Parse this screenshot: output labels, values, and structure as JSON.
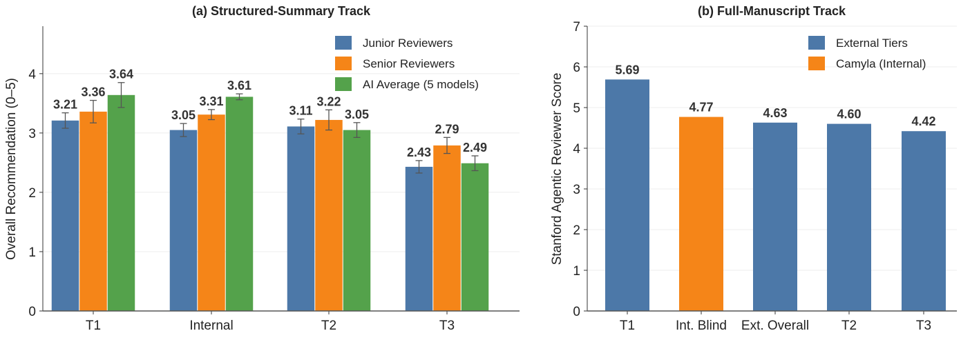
{
  "chart_data": [
    {
      "type": "bar",
      "title": "(a) Structured-Summary Track",
      "xlabel": "",
      "ylabel": "Overall Recommendation (0–5)",
      "ylim": [
        0,
        4.8
      ],
      "yticks": [
        0,
        1,
        2,
        3,
        4
      ],
      "grid": "horizontal",
      "legend_position": "top-right",
      "categories": [
        "T1",
        "Internal",
        "T2",
        "T3"
      ],
      "series": [
        {
          "name": "Junior Reviewers",
          "color": "#4c78a8",
          "values": [
            3.21,
            3.05,
            3.11,
            2.43
          ],
          "errors": [
            0.13,
            0.11,
            0.125,
            0.105
          ]
        },
        {
          "name": "Senior Reviewers",
          "color": "#f58518",
          "values": [
            3.36,
            3.31,
            3.22,
            2.79
          ],
          "errors": [
            0.19,
            0.085,
            0.17,
            0.135
          ]
        },
        {
          "name": "AI Average (5 models)",
          "color": "#54a24b",
          "values": [
            3.64,
            3.61,
            3.05,
            2.49
          ],
          "errors": [
            0.21,
            0.05,
            0.125,
            0.125
          ]
        }
      ]
    },
    {
      "type": "bar",
      "title": "(b) Full-Manuscript Track",
      "xlabel": "",
      "ylabel": "Stanford Agentic Reviewer Score",
      "ylim": [
        0,
        7
      ],
      "yticks": [
        0,
        1,
        2,
        3,
        4,
        5,
        6,
        7
      ],
      "grid": "horizontal",
      "legend_position": "top-right",
      "categories": [
        "T1",
        "Int. Blind",
        "Ext. Overall",
        "T2",
        "T3"
      ],
      "values": [
        5.69,
        4.77,
        4.63,
        4.6,
        4.42
      ],
      "value_labels": [
        "5.69",
        "4.77",
        "4.63",
        "4.60",
        "4.42"
      ],
      "bar_series": [
        "External Tiers",
        "Camyla (Internal)",
        "External Tiers",
        "External Tiers",
        "External Tiers"
      ],
      "legend": [
        {
          "name": "External Tiers",
          "color": "#4c78a8"
        },
        {
          "name": "Camyla (Internal)",
          "color": "#f58518"
        }
      ]
    }
  ]
}
